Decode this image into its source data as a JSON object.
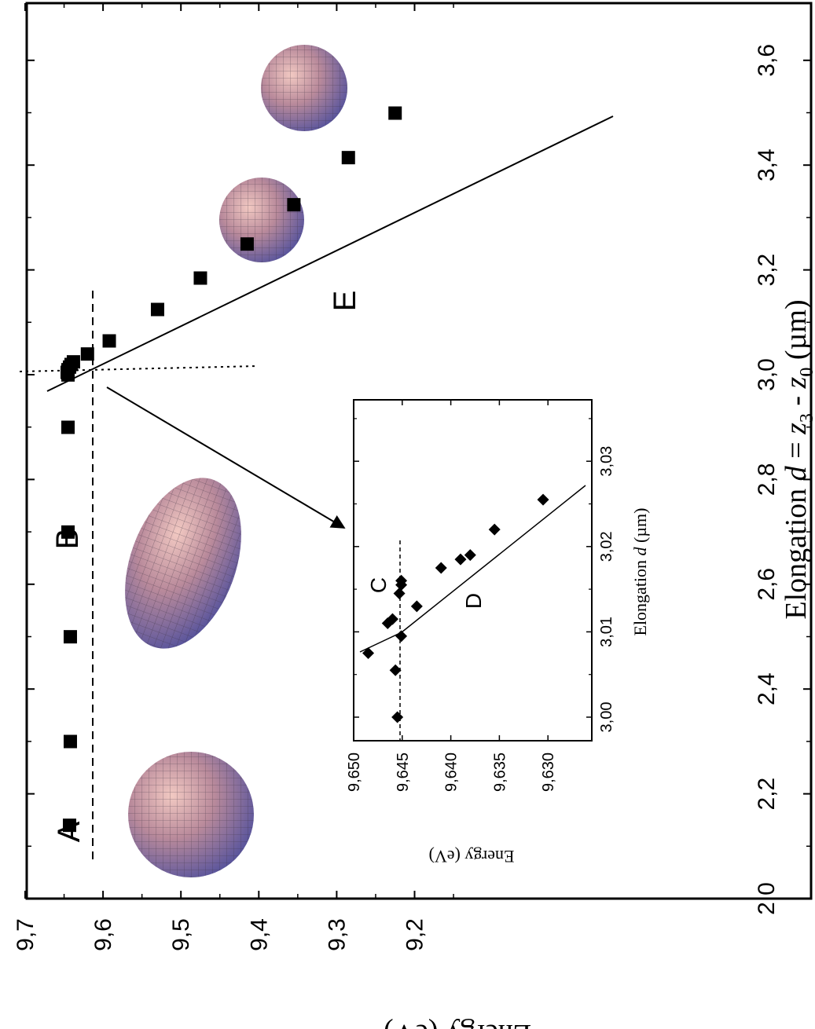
{
  "chart_data": [
    {
      "type": "line",
      "title": "",
      "xlabel_parts": [
        "Elongation ",
        "d",
        " = ",
        "z",
        "3",
        " - ",
        "z",
        "0",
        "    (µm)"
      ],
      "ylabel": "Energy (eV)",
      "xlim": [
        2.0,
        3.7
      ],
      "ylim": [
        9.15,
        9.7
      ],
      "xticks": [
        "2,0",
        "2,2",
        "2,4",
        "2,6",
        "2,8",
        "3,0",
        "3,2",
        "3,4",
        "3,6"
      ],
      "yticks": [
        "9,2",
        "9,3",
        "9,4",
        "9,5",
        "9,6",
        "9,7"
      ],
      "series": [
        {
          "x": [
            2.14,
            2.3,
            2.5,
            2.7,
            2.9,
            3.0,
            3.005,
            3.01,
            3.015,
            3.02,
            3.025,
            3.04,
            3.065,
            3.125,
            3.185,
            3.25,
            3.325,
            3.415,
            3.5
          ],
          "y": [
            9.643,
            9.642,
            9.642,
            9.645,
            9.645,
            9.645,
            9.646,
            9.645,
            9.643,
            9.641,
            9.638,
            9.62,
            9.592,
            9.53,
            9.475,
            9.415,
            9.355,
            9.285,
            9.225
          ]
        }
      ],
      "annotations": [
        "A",
        "B",
        "E"
      ]
    },
    {
      "type": "line",
      "title": "",
      "xlabel_parts": [
        "Elongation ",
        "d",
        " (µm)"
      ],
      "ylabel": "Energy (eV)",
      "xlim": [
        2.996,
        3.031
      ],
      "ylim": [
        9.6265,
        9.65
      ],
      "xticks": [
        "3,00",
        "3,01",
        "3,02",
        "3,03"
      ],
      "yticks": [
        "9,650",
        "9,645",
        "9,640",
        "9,635",
        "9,630"
      ],
      "series": [
        {
          "x": [
            3.0,
            3.0055,
            3.0075,
            3.011,
            3.0115,
            3.0145,
            3.0155,
            3.016,
            3.0095,
            3.013,
            3.0175,
            3.0185,
            3.019,
            3.022,
            3.0255
          ],
          "y": [
            9.6455,
            9.6457,
            9.6485,
            9.6465,
            9.646,
            9.6453,
            9.6451,
            9.6451,
            9.6451,
            9.6435,
            9.641,
            9.639,
            9.638,
            9.6355,
            9.6305
          ]
        }
      ],
      "annotations": [
        "C",
        "D"
      ]
    }
  ]
}
